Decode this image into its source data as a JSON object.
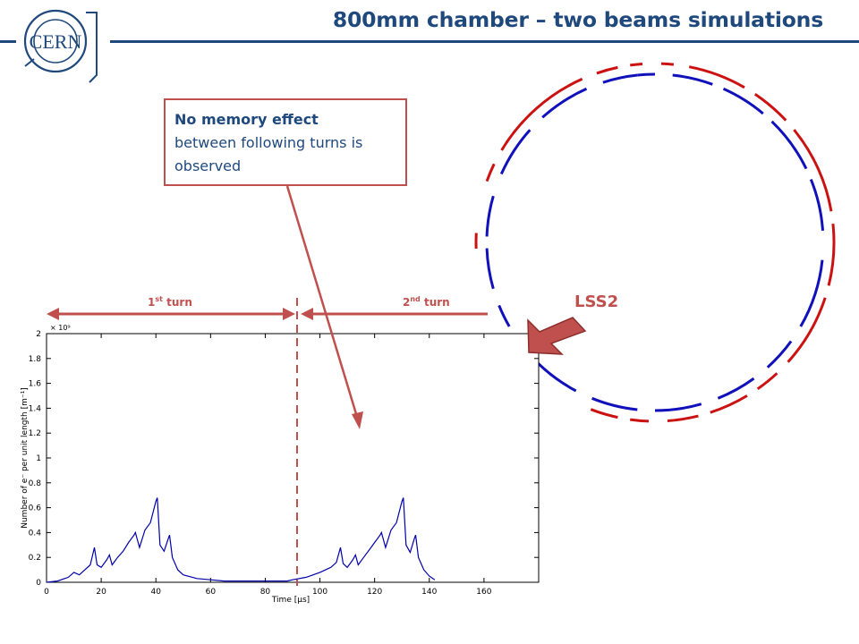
{
  "slide": {
    "title": "800mm chamber – two beams simulations",
    "logo_text": "CERN",
    "callout_bold": "No memory effect",
    "callout_text": "between following turns is observed",
    "lss2_label": "LSS2",
    "turn1": {
      "num": "1",
      "sup": "st",
      "word": " turn"
    },
    "turn2": {
      "num": "2",
      "sup": "nd",
      "word": " turn"
    },
    "colors": {
      "title": "#1f497d",
      "accent": "#c0504d",
      "beam1": "#cc1111",
      "beam2": "#1111bb",
      "curve": "#0000aa"
    }
  },
  "chart_data": {
    "type": "line",
    "title": "",
    "xlabel": "Time [μs]",
    "ylabel": "Number of e⁻ per unit length [m⁻¹]",
    "y_multiplier": "× 10⁹",
    "xlim": [
      0,
      180
    ],
    "ylim": [
      0,
      2
    ],
    "xticks": [
      0,
      20,
      40,
      60,
      80,
      100,
      120,
      140,
      160
    ],
    "yticks": [
      0,
      0.2,
      0.4,
      0.6,
      0.8,
      1,
      1.2,
      1.4,
      1.6,
      1.8,
      2
    ],
    "grid": false,
    "series": [
      {
        "x": [
          0,
          4,
          8,
          10,
          12,
          14,
          16,
          17.5,
          18.5,
          20,
          22,
          23,
          24,
          26,
          28,
          30,
          32,
          32.5,
          34,
          36,
          38,
          40,
          40.5,
          41.5,
          43,
          44.5,
          45,
          46,
          48,
          50,
          55,
          60,
          65,
          70,
          75,
          80,
          85,
          88,
          90,
          95,
          100,
          104,
          106,
          107.5,
          108.5,
          110,
          112,
          113,
          114,
          116,
          118,
          120,
          122,
          122.5,
          124,
          126,
          128,
          130,
          130.5,
          131.5,
          133,
          134.5,
          135,
          136,
          138,
          140,
          142
        ],
        "y": [
          0,
          0.01,
          0.04,
          0.08,
          0.06,
          0.1,
          0.14,
          0.28,
          0.14,
          0.12,
          0.18,
          0.22,
          0.14,
          0.2,
          0.25,
          0.32,
          0.38,
          0.4,
          0.28,
          0.42,
          0.48,
          0.65,
          0.68,
          0.3,
          0.25,
          0.35,
          0.38,
          0.2,
          0.1,
          0.06,
          0.03,
          0.02,
          0.01,
          0.01,
          0.01,
          0.01,
          0.01,
          0.01,
          0.02,
          0.04,
          0.08,
          0.12,
          0.16,
          0.28,
          0.15,
          0.12,
          0.18,
          0.22,
          0.14,
          0.2,
          0.26,
          0.32,
          0.38,
          0.4,
          0.28,
          0.42,
          0.48,
          0.65,
          0.68,
          0.3,
          0.24,
          0.35,
          0.38,
          0.2,
          0.1,
          0.05,
          0.02
        ]
      }
    ]
  }
}
